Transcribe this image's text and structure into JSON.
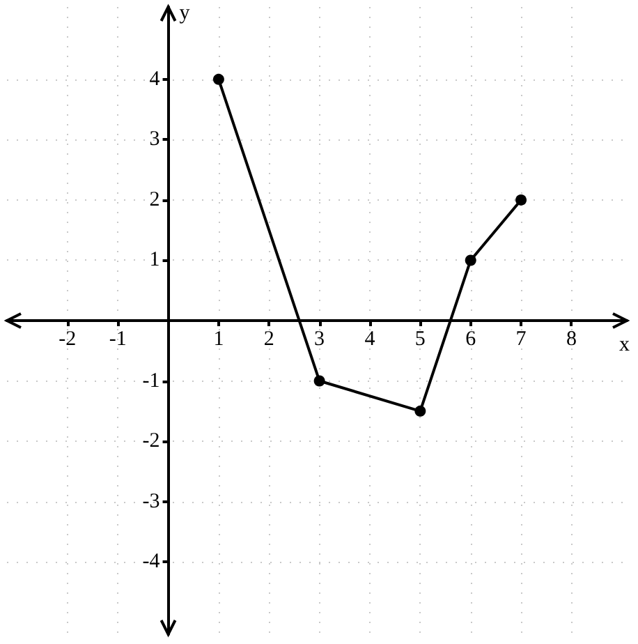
{
  "chart_data": {
    "type": "line",
    "xlabel": "x",
    "ylabel": "y",
    "x": [
      1,
      3,
      5,
      6,
      7
    ],
    "series": [
      {
        "color": "#000000",
        "values": [
          4,
          -1,
          -1.5,
          1,
          2
        ]
      }
    ],
    "xlim": [
      -3.2,
      9.1
    ],
    "ylim": [
      -5.2,
      5.2
    ],
    "xticks": [
      -2,
      -1,
      1,
      2,
      3,
      4,
      5,
      6,
      7,
      8
    ],
    "yticks": [
      -4,
      -3,
      -2,
      -1,
      1,
      2,
      3,
      4
    ],
    "grid": true,
    "marker": "circle",
    "line_style": "solid"
  }
}
